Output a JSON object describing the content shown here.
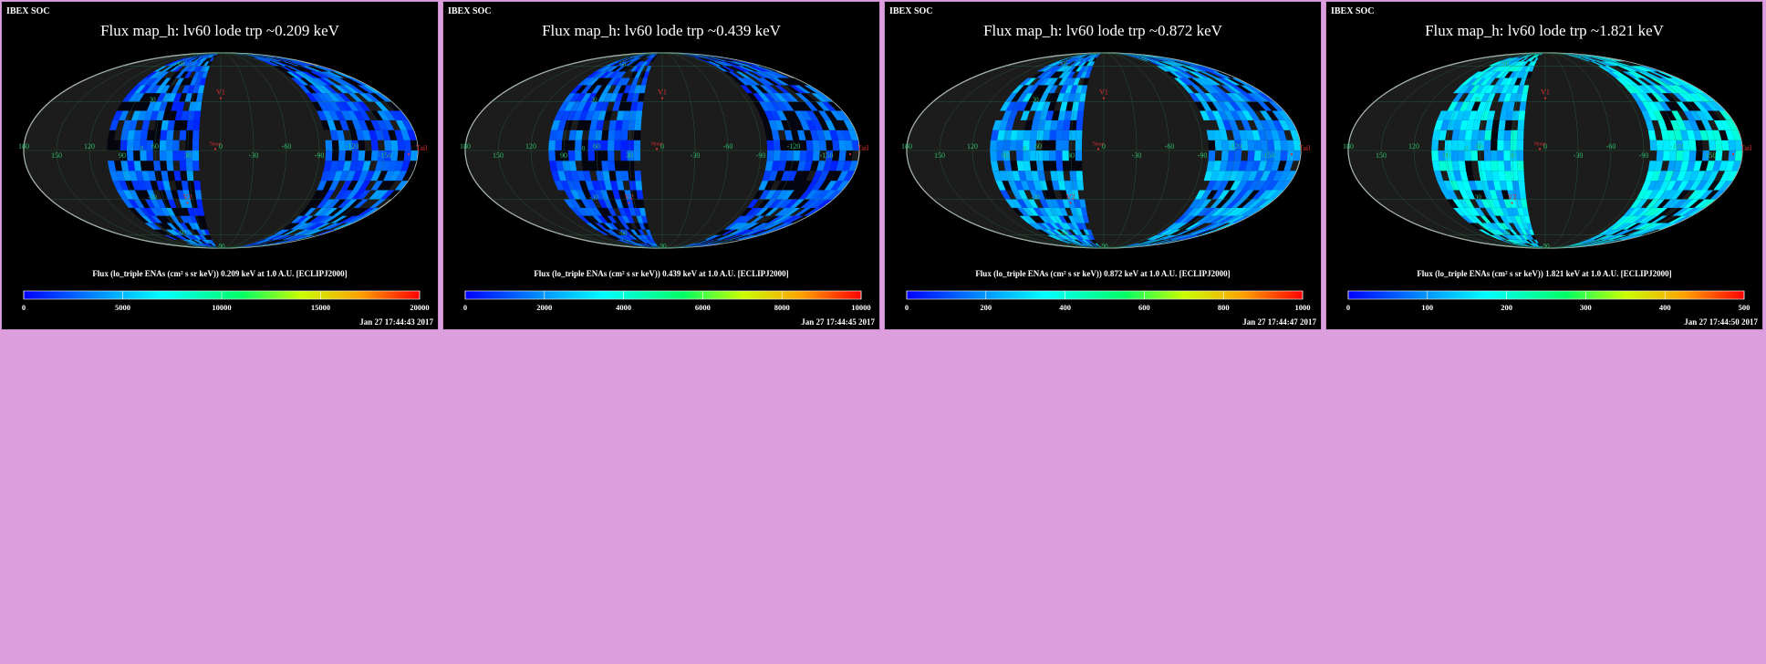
{
  "colors": {
    "page_background": "#dc9edc",
    "panel_background": "#000000",
    "grid_color": "#2e7d4f",
    "label_green": "#2fbf6a",
    "marker_red": "#e03030",
    "ellipse_fill": "#1c1c1c"
  },
  "chart_data": [
    {
      "type": "heatmap",
      "projection": "mollweide",
      "org_label": "IBEX SOC",
      "title": "Flux   map_h: lv60 lode trp ~0.209 keV",
      "energy_keV": 0.209,
      "colorbar_label": "Flux (lo_triple ENAs (cm² s sr keV))  0.209 keV at 1.0 A.U. [ECLIPJ2000]",
      "colorbar_range": [
        0,
        20000
      ],
      "colorbar_ticks": [
        "0",
        "5000",
        "10000",
        "15000",
        "20000"
      ],
      "timestamp": "Jan 27 17:44:43 2017",
      "intensity_level": 0.12,
      "longitude_labels": [
        "60",
        "30",
        "0",
        "-30",
        "-60",
        "-90",
        "-120",
        "-150",
        "180",
        "150",
        "120",
        "90"
      ],
      "latitude_labels": [
        "60",
        "30",
        "0",
        "-30",
        "-60",
        "-90"
      ],
      "markers": [
        "V1",
        "Nose",
        "V2",
        "Tail"
      ]
    },
    {
      "type": "heatmap",
      "projection": "mollweide",
      "org_label": "IBEX SOC",
      "title": "Flux   map_h: lv60 lode trp ~0.439 keV",
      "energy_keV": 0.439,
      "colorbar_label": "Flux (lo_triple ENAs (cm² s sr keV))  0.439 keV at 1.0 A.U. [ECLIPJ2000]",
      "colorbar_range": [
        0,
        10000
      ],
      "colorbar_ticks": [
        "0",
        "2000",
        "4000",
        "6000",
        "8000",
        "10000"
      ],
      "timestamp": "Jan 27 17:44:45 2017",
      "intensity_level": 0.1,
      "longitude_labels": [
        "60",
        "30",
        "0",
        "-30",
        "-60",
        "-90",
        "-120",
        "-150",
        "180",
        "150",
        "120",
        "90"
      ],
      "latitude_labels": [
        "60",
        "30",
        "0",
        "-30",
        "-60",
        "-90"
      ],
      "markers": [
        "V1",
        "Nose",
        "V2",
        "Tail"
      ]
    },
    {
      "type": "heatmap",
      "projection": "mollweide",
      "org_label": "IBEX SOC",
      "title": "Flux   map_h: lv60 lode trp ~0.872 keV",
      "energy_keV": 0.872,
      "colorbar_label": "Flux (lo_triple ENAs (cm² s sr keV))  0.872 keV at 1.0 A.U. [ECLIPJ2000]",
      "colorbar_range": [
        0,
        1000
      ],
      "colorbar_ticks": [
        "0",
        "200",
        "400",
        "600",
        "800",
        "1000"
      ],
      "timestamp": "Jan 27 17:44:47 2017",
      "intensity_level": 0.2,
      "longitude_labels": [
        "60",
        "30",
        "0",
        "-30",
        "-60",
        "-90",
        "-120",
        "-150",
        "180",
        "150",
        "120",
        "90"
      ],
      "latitude_labels": [
        "60",
        "30",
        "0",
        "-30",
        "-60",
        "-90"
      ],
      "markers": [
        "V1",
        "Nose",
        "V2",
        "Tail"
      ]
    },
    {
      "type": "heatmap",
      "projection": "mollweide",
      "org_label": "IBEX SOC",
      "title": "Flux   map_h: lv60 lode trp ~1.821 keV",
      "energy_keV": 1.821,
      "colorbar_label": "Flux (lo_triple ENAs (cm² s sr keV))  1.821 keV at 1.0 A.U. [ECLIPJ2000]",
      "colorbar_range": [
        0,
        500
      ],
      "colorbar_ticks": [
        "0",
        "100",
        "200",
        "300",
        "400",
        "500"
      ],
      "timestamp": "Jan 27 17:44:50 2017",
      "intensity_level": 0.3,
      "longitude_labels": [
        "60",
        "30",
        "0",
        "-30",
        "-60",
        "-90",
        "-120",
        "-150",
        "180",
        "150",
        "120",
        "90"
      ],
      "latitude_labels": [
        "60",
        "30",
        "0",
        "-30",
        "-60",
        "-90"
      ],
      "markers": [
        "V1",
        "Nose",
        "V2",
        "Tail"
      ]
    }
  ]
}
